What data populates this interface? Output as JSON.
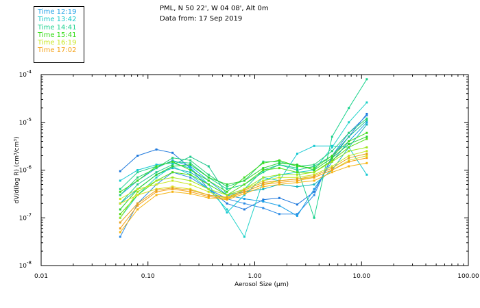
{
  "header": {
    "station": "PML, N 50 22', W 04 08', Alt 0m",
    "date_line": "Data from: 17 Sep 2019"
  },
  "legend": [
    {
      "label": "Time 12:19",
      "color": "#1a9fe6"
    },
    {
      "label": "Time 13:42",
      "color": "#14c8c8"
    },
    {
      "label": "Time 14:41",
      "color": "#19d28c"
    },
    {
      "label": "Time 15:41",
      "color": "#32dc14"
    },
    {
      "label": "Time 16:19",
      "color": "#c8e61e"
    },
    {
      "label": "Time 17:02",
      "color": "#f5a014"
    }
  ],
  "chart_data": {
    "type": "line",
    "x_scale": "log",
    "y_scale": "log",
    "xlim": [
      0.01,
      100
    ],
    "ylim": [
      1e-08,
      0.0001
    ],
    "xlabel": "Aerosol Size (μm)",
    "ylabel": "dV/d(log R) (cm³/cm³)",
    "x_tick_labels": [
      "0.01",
      "0.10",
      "1.00",
      "10.00",
      "100.00"
    ],
    "x_tick_values": [
      0.01,
      0.1,
      1,
      10,
      100
    ],
    "y_tick_values": [
      1e-08,
      1e-07,
      1e-06,
      1e-05,
      0.0001
    ],
    "y_tick_bases": [
      "10",
      "10",
      "10",
      "10",
      "10"
    ],
    "y_tick_exps": [
      "-8",
      "-7",
      "-6",
      "-5",
      "-4"
    ],
    "x": [
      0.055,
      0.08,
      0.12,
      0.17,
      0.25,
      0.37,
      0.55,
      0.8,
      1.2,
      1.7,
      2.5,
      3.6,
      5.3,
      7.6,
      11.2
    ],
    "series": [
      {
        "name": "12:19 a",
        "color": "#1e78dc",
        "values": [
          9.5e-07,
          2e-06,
          2.7e-06,
          2.3e-06,
          1.1e-06,
          4e-07,
          2e-07,
          1.5e-07,
          2.4e-07,
          2.6e-07,
          1.9e-07,
          3.5e-07,
          1.8e-06,
          5e-06,
          1.5e-05
        ]
      },
      {
        "name": "12:19 b",
        "color": "#2d8ce6",
        "values": [
          4e-08,
          2e-07,
          5e-07,
          9e-07,
          7e-07,
          4e-07,
          2.5e-07,
          2e-07,
          1.6e-07,
          1.2e-07,
          1.2e-07,
          3e-07,
          2e-06,
          6e-06,
          1.4e-05
        ]
      },
      {
        "name": "12:19 c",
        "color": "#1aa0e6",
        "values": [
          3e-07,
          6e-07,
          1.1e-06,
          1.6e-06,
          1.2e-06,
          6e-07,
          3e-07,
          2.5e-07,
          2.2e-07,
          1.8e-07,
          1.1e-07,
          4e-07,
          1.5e-06,
          4e-06,
          1e-05
        ]
      },
      {
        "name": "13:42 a",
        "color": "#14c8d2",
        "values": [
          6e-07,
          1e-06,
          1.3e-06,
          1.4e-06,
          1.1e-06,
          5e-07,
          1.3e-07,
          3e-07,
          7e-07,
          6e-07,
          2.2e-06,
          3.2e-06,
          3.2e-06,
          3e-06,
          8e-07
        ]
      },
      {
        "name": "13:42 b",
        "color": "#14b4be",
        "values": [
          2e-07,
          4e-07,
          8e-07,
          1.1e-06,
          9e-07,
          5e-07,
          3e-07,
          3.5e-07,
          4e-07,
          5e-07,
          4.5e-07,
          5e-07,
          1e-06,
          3e-06,
          9e-06
        ]
      },
      {
        "name": "13:42 c",
        "color": "#1ed2c8",
        "values": [
          1e-07,
          3e-07,
          7e-07,
          1.2e-06,
          8e-07,
          4e-07,
          1.5e-07,
          4e-08,
          6e-07,
          8e-07,
          9e-07,
          1e-06,
          3e-06,
          1e-05,
          2.6e-05
        ]
      },
      {
        "name": "14:41 a",
        "color": "#19d28c",
        "values": [
          4e-07,
          9e-07,
          1.2e-06,
          1.5e-06,
          1.4e-06,
          7e-07,
          4e-07,
          5e-07,
          9e-07,
          1.3e-06,
          1.1e-06,
          1e-07,
          5e-06,
          2e-05,
          8e-05
        ]
      },
      {
        "name": "14:41 b",
        "color": "#28d278",
        "values": [
          3e-07,
          7e-07,
          1.1e-06,
          1.8e-06,
          1.6e-06,
          8e-07,
          4.5e-07,
          6e-07,
          1.5e-06,
          1.5e-06,
          1.2e-06,
          1.3e-06,
          2.5e-06,
          6e-06,
          1.2e-05
        ]
      },
      {
        "name": "14:41 c",
        "color": "#1ec88c",
        "values": [
          2e-07,
          5e-07,
          9e-07,
          1.3e-06,
          1.9e-06,
          1.2e-06,
          3e-07,
          4e-07,
          1e-06,
          1.3e-06,
          1e-06,
          1.2e-06,
          2e-06,
          5e-06,
          1.1e-05
        ]
      },
      {
        "name": "15:41 a",
        "color": "#3cdc1e",
        "values": [
          3.5e-07,
          6e-07,
          1.2e-06,
          1.5e-06,
          1e-06,
          6e-07,
          3.5e-07,
          7e-07,
          1.4e-06,
          1.6e-06,
          1.2e-06,
          1.1e-06,
          2e-06,
          4e-06,
          6e-06
        ]
      },
      {
        "name": "15:41 b",
        "color": "#28d232",
        "values": [
          1.5e-07,
          4e-07,
          8e-07,
          1.2e-06,
          1.3e-06,
          7e-07,
          5e-07,
          6e-07,
          1.1e-06,
          1.4e-06,
          1.3e-06,
          1e-06,
          1.8e-06,
          3.5e-06,
          5e-06
        ]
      },
      {
        "name": "15:41 c",
        "color": "#50dc14",
        "values": [
          1.2e-07,
          3e-07,
          6e-07,
          9e-07,
          8e-07,
          5e-07,
          3e-07,
          5e-07,
          1e-06,
          1.1e-06,
          9e-07,
          9e-07,
          1.6e-06,
          3e-06,
          4.5e-06
        ]
      },
      {
        "name": "16:19 a",
        "color": "#a0e61e",
        "values": [
          1e-07,
          3.5e-07,
          6e-07,
          7e-07,
          6e-07,
          4e-07,
          3e-07,
          4e-07,
          7e-07,
          8e-07,
          8e-07,
          9e-07,
          1.5e-06,
          2.5e-06,
          3e-06
        ]
      },
      {
        "name": "16:19 b",
        "color": "#c8e61e",
        "values": [
          2.5e-07,
          4e-07,
          5e-07,
          6e-07,
          5e-07,
          3.5e-07,
          2.5e-07,
          4e-07,
          6e-07,
          7e-07,
          7e-07,
          8e-07,
          1.2e-06,
          2e-06,
          2.5e-06
        ]
      },
      {
        "name": "16:19 c",
        "color": "#dcdc1e",
        "values": [
          2e-07,
          3e-07,
          4e-07,
          4.5e-07,
          4e-07,
          3e-07,
          2.6e-07,
          3.5e-07,
          5e-07,
          6e-07,
          6.5e-07,
          7e-07,
          1e-06,
          1.6e-06,
          2e-06
        ]
      },
      {
        "name": "17:02 a",
        "color": "#f5b414",
        "values": [
          5e-08,
          1.5e-07,
          3e-07,
          3.5e-07,
          3.2e-07,
          2.6e-07,
          2.4e-07,
          3.2e-07,
          4.5e-07,
          5e-07,
          5.5e-07,
          6e-07,
          9e-07,
          1.2e-06,
          1.4e-06
        ]
      },
      {
        "name": "17:02 b",
        "color": "#f5a014",
        "values": [
          6e-08,
          1.8e-07,
          3.5e-07,
          4e-07,
          3.5e-07,
          2.8e-07,
          2.5e-07,
          3.5e-07,
          5e-07,
          5.5e-07,
          6e-07,
          7e-07,
          1e-06,
          1.5e-06,
          1.8e-06
        ]
      },
      {
        "name": "17:02 c",
        "color": "#e6a01e",
        "values": [
          8e-08,
          2e-07,
          3.8e-07,
          4.2e-07,
          3.8e-07,
          3e-07,
          2.7e-07,
          3.8e-07,
          5.5e-07,
          6e-07,
          6.5e-07,
          7.5e-07,
          1.1e-06,
          1.8e-06,
          2.2e-06
        ]
      }
    ]
  }
}
